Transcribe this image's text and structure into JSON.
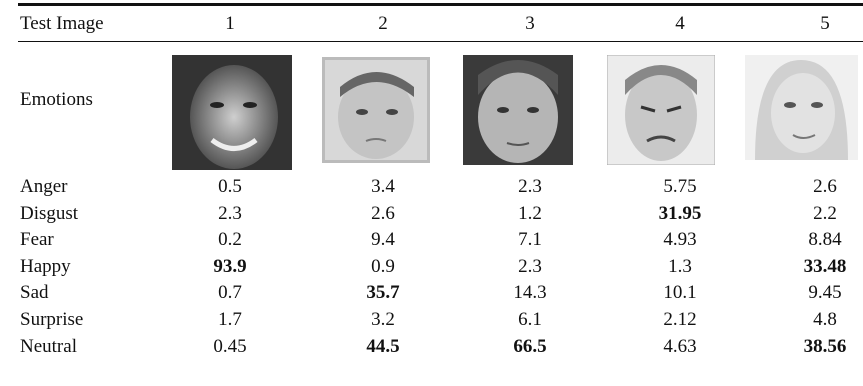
{
  "table": {
    "header": [
      "Test Image",
      "1",
      "2",
      "3",
      "4",
      "5"
    ],
    "image_row_label": "Emotions",
    "rows": [
      [
        "Anger",
        "0.5",
        "3.4",
        "2.3",
        "5.75",
        "2.6"
      ],
      [
        "Disgust",
        "2.3",
        "2.6",
        "1.2",
        "31.95",
        "2.2"
      ],
      [
        "Fear",
        "0.2",
        "9.4",
        "7.1",
        "4.93",
        "8.84"
      ],
      [
        "Happy",
        "93.9",
        "0.9",
        "2.3",
        "1.3",
        "33.48"
      ],
      [
        "Sad",
        "0.7",
        "35.7",
        "14.3",
        "10.1",
        "9.45"
      ],
      [
        "Surprise",
        "1.7",
        "3.2",
        "6.1",
        "2.12",
        "4.8"
      ],
      [
        "Neutral",
        "0.45",
        "44.5",
        "66.5",
        "4.63",
        "38.56"
      ]
    ]
  }
}
